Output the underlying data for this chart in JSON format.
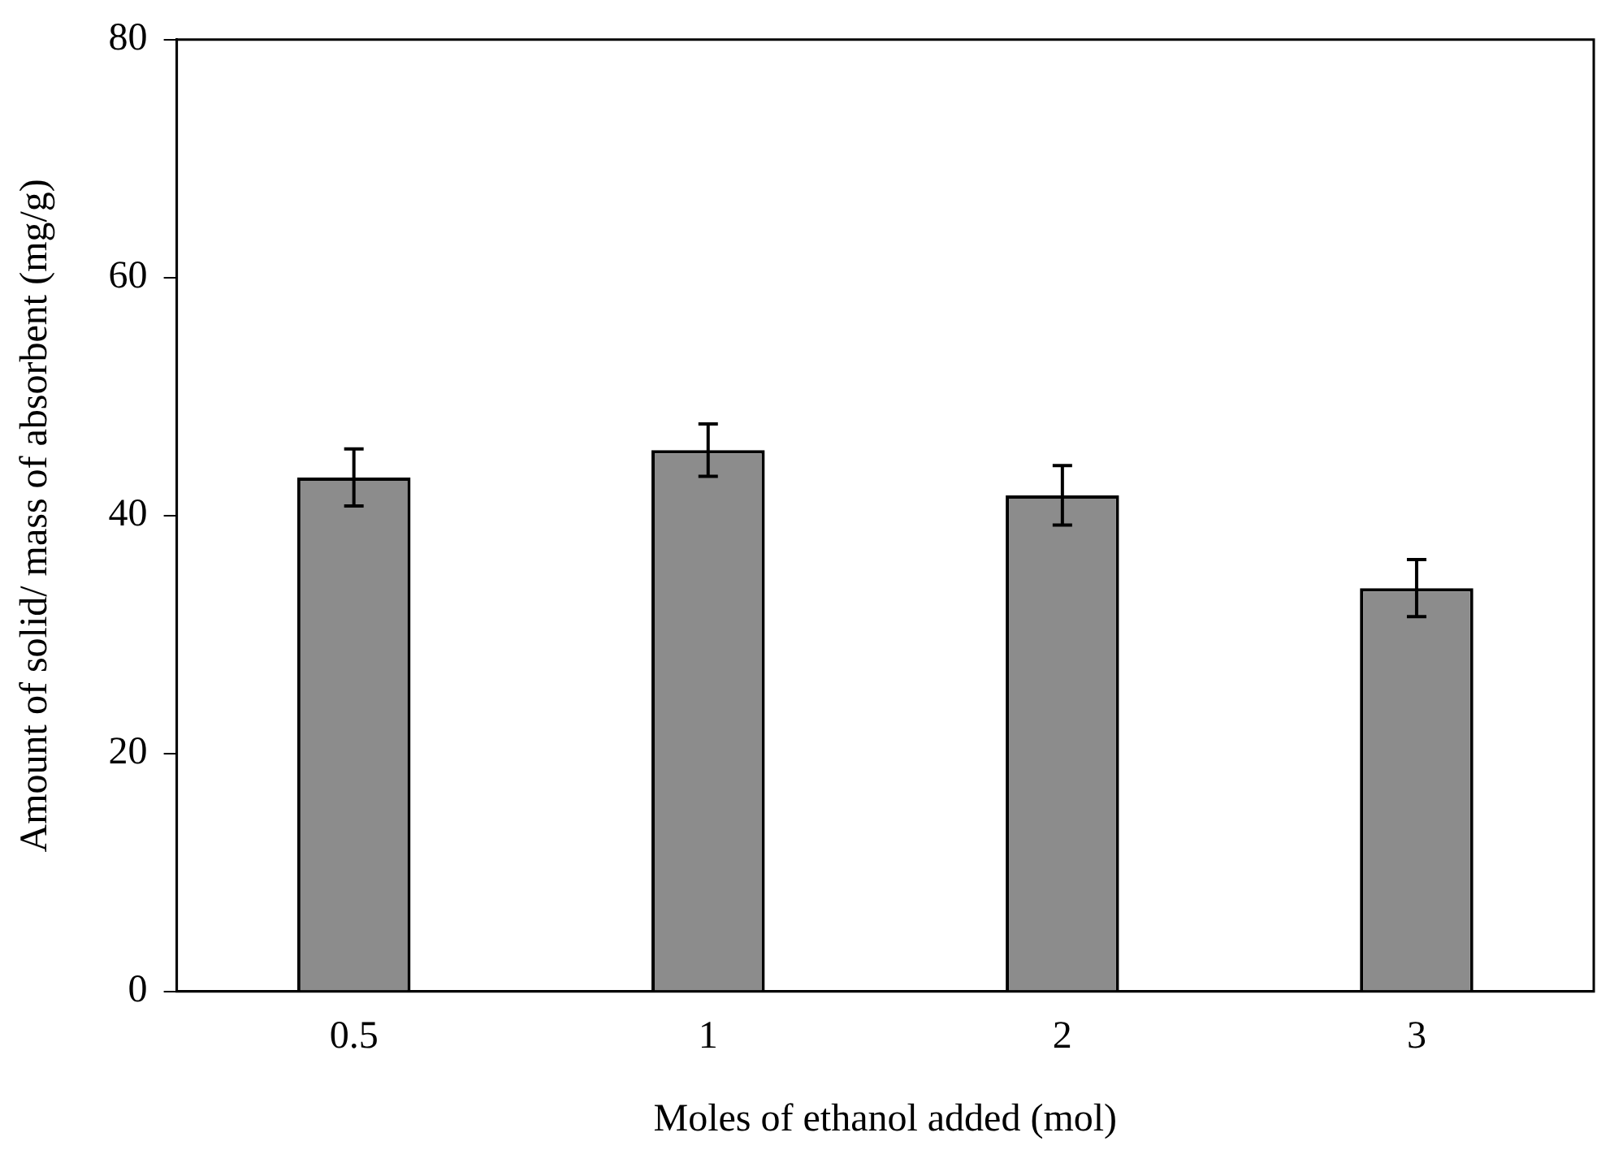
{
  "chart_data": {
    "type": "bar",
    "xlabel": "Moles of ethanol added (mol)",
    "ylabel": "Amount of solid/ mass of absorbent (mg/g)",
    "categories": [
      "0.5",
      "1",
      "2",
      "3"
    ],
    "values": [
      43.2,
      45.5,
      41.7,
      33.9
    ],
    "errors": [
      2.4,
      2.2,
      2.5,
      2.4
    ],
    "color": "#8c8c8c",
    "ylim": [
      0,
      80
    ],
    "yticks": [
      0,
      20,
      40,
      60,
      80
    ],
    "grid": false,
    "legend": false
  }
}
